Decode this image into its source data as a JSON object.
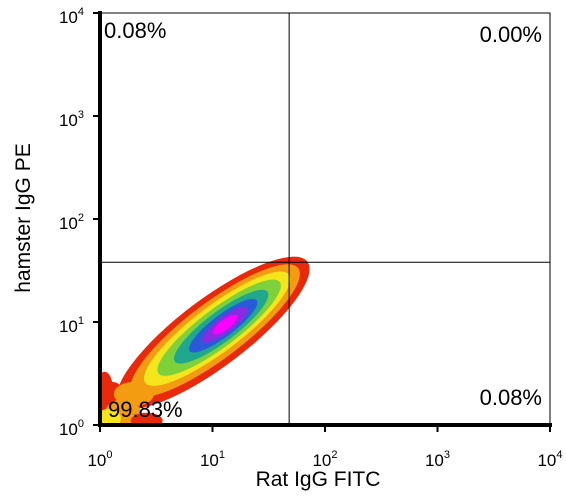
{
  "chart_data": {
    "type": "heatmap",
    "subtype": "flow-cytometry-density-quadrant",
    "xlabel": "Rat IgG FITC",
    "ylabel": "hamster IgG PE",
    "x_scale": "log",
    "y_scale": "log",
    "xlim": [
      1,
      10000
    ],
    "ylim": [
      1,
      10000
    ],
    "x_ticks": [
      {
        "base": "10",
        "exp": "0",
        "value": 1
      },
      {
        "base": "10",
        "exp": "1",
        "value": 10
      },
      {
        "base": "10",
        "exp": "2",
        "value": 100
      },
      {
        "base": "10",
        "exp": "3",
        "value": 1000
      },
      {
        "base": "10",
        "exp": "4",
        "value": 10000
      }
    ],
    "y_ticks": [
      {
        "base": "10",
        "exp": "0",
        "value": 1
      },
      {
        "base": "10",
        "exp": "1",
        "value": 10
      },
      {
        "base": "10",
        "exp": "2",
        "value": 100
      },
      {
        "base": "10",
        "exp": "3",
        "value": 1000
      },
      {
        "base": "10",
        "exp": "4",
        "value": 10000
      }
    ],
    "gates": {
      "x": 48,
      "y": 38
    },
    "quadrants": {
      "upper_left": "0.08%",
      "upper_right": "0.00%",
      "lower_left": "99.83%",
      "lower_right": "0.08%"
    },
    "population": {
      "description_values": {
        "center": [
          11,
          9
        ],
        "extent_x": [
          1,
          48
        ],
        "extent_y": [
          1,
          38
        ]
      }
    },
    "density_colors": [
      "#e8290b",
      "#f39c12",
      "#f5e51c",
      "#7fd13b",
      "#1fa88e",
      "#2a59d9",
      "#8a2be2",
      "#ff00ff"
    ],
    "grid": false
  }
}
